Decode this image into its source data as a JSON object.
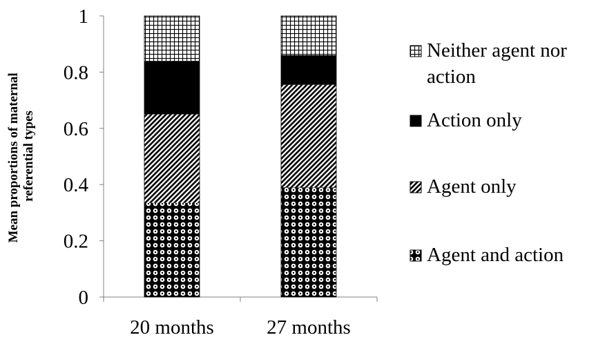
{
  "chart_data": {
    "type": "bar",
    "stacked": true,
    "categories": [
      "20 months",
      "27 months"
    ],
    "series": [
      {
        "name": "Agent and action",
        "values": [
          0.335,
          0.39
        ],
        "pattern": "circles"
      },
      {
        "name": "Agent only",
        "values": [
          0.315,
          0.365
        ],
        "pattern": "diagonal"
      },
      {
        "name": "Action only",
        "values": [
          0.19,
          0.105
        ],
        "pattern": "solid"
      },
      {
        "name": "Neither agent nor action",
        "values": [
          0.16,
          0.14
        ],
        "pattern": "grid"
      }
    ],
    "legend_order": [
      "Neither agent nor action",
      "Action only",
      "Agent only",
      "Agent and action"
    ],
    "legend_lines": [
      [
        "Neither agent nor",
        "action"
      ],
      [
        "Action only"
      ],
      [
        "Agent only"
      ],
      [
        "Agent and action"
      ]
    ],
    "ylabel_lines": [
      "Mean proportions of maternal",
      "referential types"
    ],
    "ylim": [
      0,
      1
    ],
    "yticks": [
      0,
      0.2,
      0.4,
      0.6,
      0.8,
      1
    ],
    "ytick_labels": [
      "0",
      "0.2",
      "0.4",
      "0.6",
      "0.8",
      "1"
    ],
    "grid": false,
    "legend_position": "right",
    "colors": {
      "mark": "#000000",
      "background": "#ffffff"
    }
  }
}
